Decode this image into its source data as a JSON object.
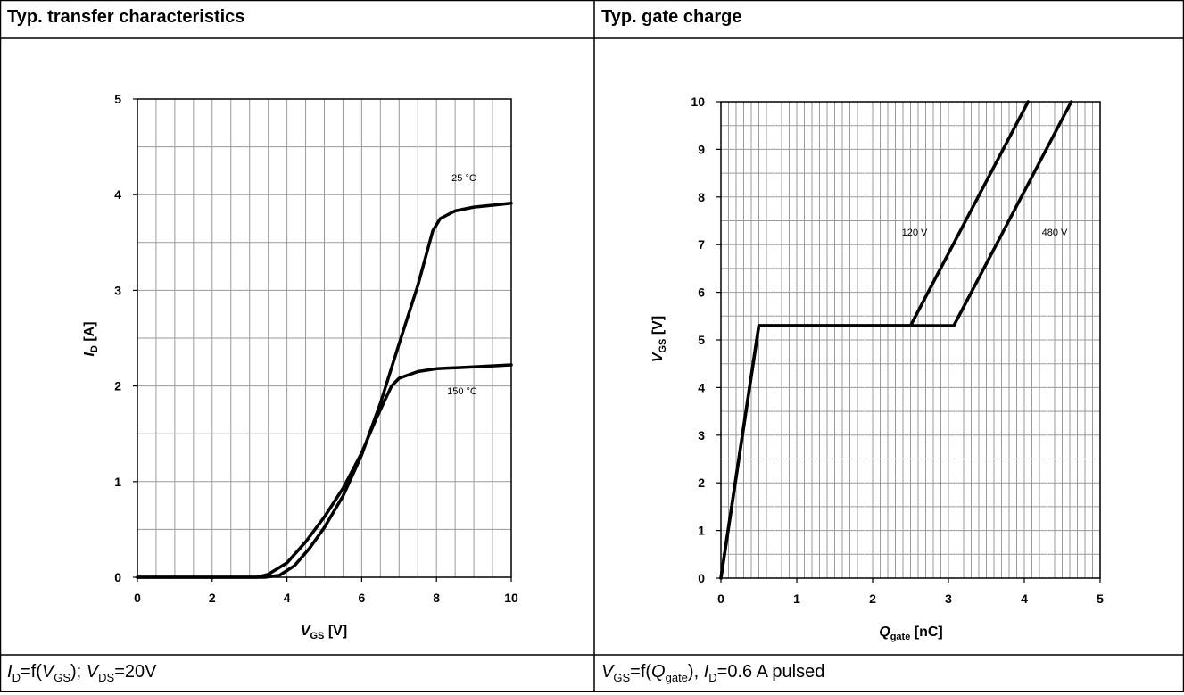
{
  "panels": {
    "left_title": "Typ. transfer characteristics",
    "right_title": "Typ. gate charge",
    "left_caption": {
      "p1": "I",
      "s1": "D",
      "p2": "=f(",
      "p3": "V",
      "s2": "GS",
      "p4": "); ",
      "p5": "V",
      "s3": "DS",
      "p6": "=20V"
    },
    "right_caption": {
      "p1": "V",
      "s1": "GS",
      "p2": "=f(",
      "p3": "Q",
      "s2": "gate",
      "p4": "), ",
      "p5": "I",
      "s3": "D",
      "p6": "=0.6 A pulsed"
    }
  },
  "chart_data": [
    {
      "type": "line",
      "xlim": [
        0,
        10
      ],
      "ylim": [
        0,
        5
      ],
      "x_ticks": [
        0,
        2,
        4,
        6,
        8,
        10
      ],
      "y_ticks": [
        0,
        1,
        2,
        3,
        4,
        5
      ],
      "xlabel": {
        "main": "V",
        "sub": "GS",
        "unit": " [V]"
      },
      "ylabel": {
        "main": "I",
        "sub": "D",
        "unit": " [A]"
      },
      "grid": true,
      "series": [
        {
          "name": "25 °C",
          "points": [
            [
              0,
              0
            ],
            [
              3.4,
              0
            ],
            [
              3.8,
              0.02
            ],
            [
              4.2,
              0.12
            ],
            [
              4.6,
              0.3
            ],
            [
              5.0,
              0.52
            ],
            [
              5.5,
              0.85
            ],
            [
              6.0,
              1.28
            ],
            [
              6.5,
              1.82
            ],
            [
              7.0,
              2.44
            ],
            [
              7.5,
              3.05
            ],
            [
              7.9,
              3.62
            ],
            [
              8.1,
              3.75
            ],
            [
              8.5,
              3.83
            ],
            [
              9.0,
              3.87
            ],
            [
              9.5,
              3.89
            ],
            [
              10,
              3.91
            ]
          ]
        },
        {
          "name": "150 °C",
          "points": [
            [
              0,
              0
            ],
            [
              3.2,
              0
            ],
            [
              3.5,
              0.03
            ],
            [
              4.0,
              0.15
            ],
            [
              4.5,
              0.37
            ],
            [
              5.0,
              0.63
            ],
            [
              5.5,
              0.93
            ],
            [
              6.0,
              1.3
            ],
            [
              6.4,
              1.67
            ],
            [
              6.8,
              2.0
            ],
            [
              7.0,
              2.08
            ],
            [
              7.5,
              2.15
            ],
            [
              8.0,
              2.18
            ],
            [
              9.0,
              2.2
            ],
            [
              10,
              2.22
            ]
          ]
        }
      ]
    },
    {
      "type": "line",
      "xlim": [
        0,
        5
      ],
      "ylim": [
        0,
        10
      ],
      "x_ticks": [
        0,
        1,
        2,
        3,
        4,
        5
      ],
      "y_ticks": [
        0,
        1,
        2,
        3,
        4,
        5,
        6,
        7,
        8,
        9,
        10
      ],
      "xlabel": {
        "main": "Q",
        "sub": "gate",
        "unit": " [nC]"
      },
      "ylabel": {
        "main": "V",
        "sub": "GS",
        "unit": " [V]"
      },
      "grid": true,
      "series": [
        {
          "name": "120 V",
          "points": [
            [
              0,
              0
            ],
            [
              0.5,
              5.3
            ],
            [
              2.5,
              5.3
            ],
            [
              4.05,
              10
            ]
          ]
        },
        {
          "name": "480 V",
          "points": [
            [
              0,
              0
            ],
            [
              0.5,
              5.3
            ],
            [
              3.07,
              5.3
            ],
            [
              4.62,
              10
            ]
          ]
        }
      ]
    }
  ]
}
